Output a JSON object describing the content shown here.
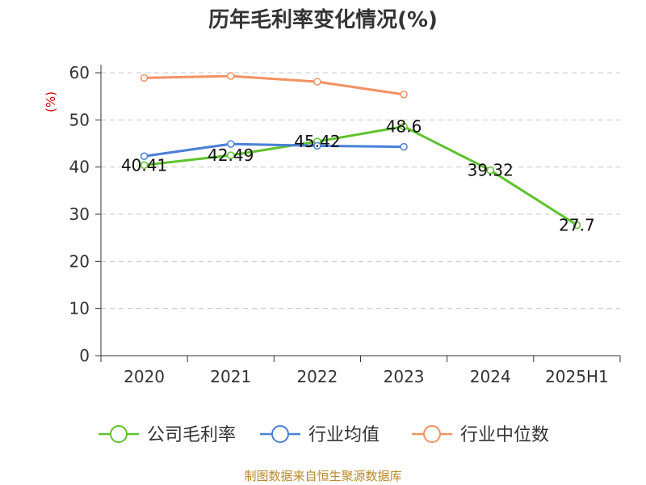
{
  "chart_data": {
    "type": "line",
    "title": "历年毛利率变化情况(%)",
    "ylabel": "(%)",
    "xlabel": "",
    "categories": [
      "2020",
      "2021",
      "2022",
      "2023",
      "2024",
      "2025H1"
    ],
    "ylim": [
      0,
      60
    ],
    "yticks": [
      0,
      10,
      20,
      30,
      40,
      50,
      60
    ],
    "grid": true,
    "legend_position": "bottom",
    "series": [
      {
        "name": "公司毛利率",
        "color": "#5ec22d",
        "values": [
          40.41,
          42.49,
          45.42,
          48.6,
          39.32,
          27.7
        ],
        "labels": [
          "40.41",
          "42.49",
          "45.42",
          "48.6",
          "39.32",
          "27.7"
        ]
      },
      {
        "name": "行业均值",
        "color": "#4a7fd6",
        "values": [
          42.3,
          44.9,
          44.5,
          44.3,
          null,
          null
        ]
      },
      {
        "name": "行业中位数",
        "color": "#f39163",
        "values": [
          58.9,
          59.3,
          58.1,
          55.4,
          null,
          null
        ]
      }
    ]
  },
  "source": "制图数据来自恒生聚源数据库"
}
